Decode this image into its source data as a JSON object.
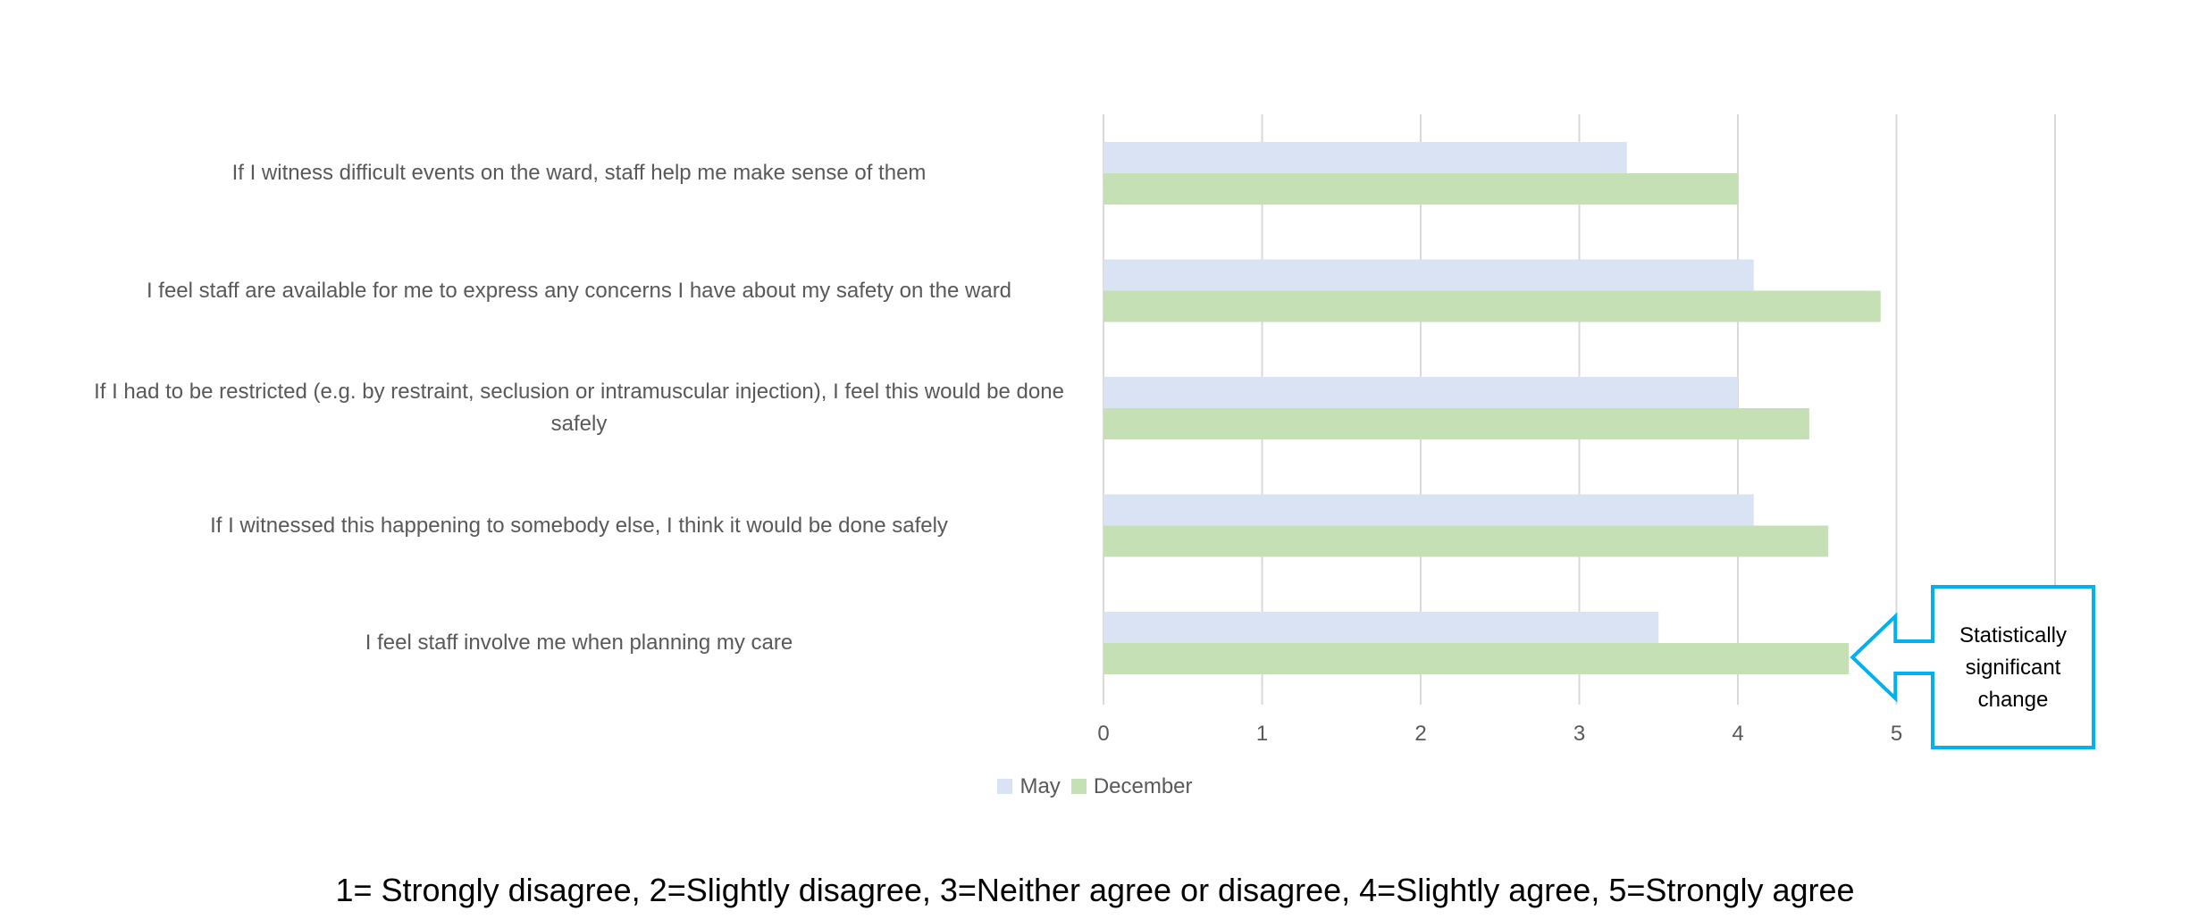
{
  "chart_data": {
    "type": "bar",
    "orientation": "horizontal",
    "categories": [
      "If I witness difficult events on the ward, staff help me make sense of them",
      "I feel staff are available for me to express any concerns I have about my safety on the ward",
      "If I had to be restricted (e.g. by restraint, seclusion or intramuscular injection), I feel this would be done safely",
      "If I witnessed this happening to somebody else, I think it would be done safely",
      "I feel staff involve me when planning my care"
    ],
    "series": [
      {
        "name": "May",
        "color": "#dae3f3",
        "values": [
          3.3,
          4.1,
          4.0,
          4.1,
          3.5
        ]
      },
      {
        "name": "December",
        "color": "#c5e0b4",
        "values": [
          4.0,
          4.9,
          4.45,
          4.57,
          4.7
        ]
      }
    ],
    "xlim": [
      0,
      6
    ],
    "xticks": [
      "0",
      "1",
      "2",
      "3",
      "4",
      "5"
    ],
    "grid": true,
    "legend_position": "bottom"
  },
  "callout": {
    "text": "Statistically\nsignificant\nchange",
    "border_color": "#00b0f0",
    "points_to_category": 4
  },
  "footnote": "1= Strongly disagree, 2=Slightly disagree, 3=Neither agree or disagree, 4=Slightly agree, 5=Strongly agree"
}
